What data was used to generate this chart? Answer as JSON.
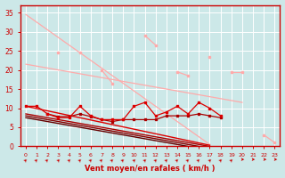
{
  "x": [
    0,
    1,
    2,
    3,
    4,
    5,
    6,
    7,
    8,
    9,
    10,
    11,
    12,
    13,
    14,
    15,
    16,
    17,
    18,
    19,
    20,
    21,
    22,
    23
  ],
  "pink_trend_top": [
    34.5,
    32.5,
    30.5,
    28.5,
    26.5,
    24.5,
    22.5,
    20.5,
    18.5,
    16.5,
    14.5,
    12.5,
    10.5,
    8.5,
    6.5,
    4.5,
    2.5,
    0.5,
    null,
    null,
    null,
    null,
    null,
    null
  ],
  "pink_noisy": [
    null,
    null,
    null,
    24.5,
    null,
    24.5,
    null,
    20,
    16.5,
    null,
    null,
    29,
    26.5,
    null,
    19.5,
    18.5,
    null,
    23.5,
    null,
    19.5,
    19.5,
    null,
    3,
    1
  ],
  "pink_trend_mid": [
    21.5,
    21,
    20.5,
    20,
    19.5,
    19,
    18.5,
    18,
    17.5,
    17,
    16.5,
    16,
    15.5,
    15,
    14.5,
    14,
    13.5,
    13,
    12.5,
    12,
    11.5,
    null,
    null,
    null
  ],
  "red_noisy": [
    10.5,
    10.5,
    8.5,
    7.5,
    7.5,
    10.5,
    8,
    7,
    7,
    7,
    10.5,
    11.5,
    8,
    9,
    10.5,
    8.5,
    11.5,
    10,
    8,
    null,
    null,
    null,
    null,
    null
  ],
  "red_trend": [
    10.5,
    9.9,
    9.3,
    8.7,
    8.1,
    7.5,
    6.9,
    6.3,
    5.7,
    5.1,
    4.5,
    3.9,
    3.3,
    2.7,
    2.1,
    1.5,
    0.9,
    0.3,
    null,
    null,
    null,
    null,
    null,
    null
  ],
  "darkred_noisy": [
    null,
    null,
    8.5,
    7.8,
    7.8,
    8.5,
    7.8,
    7,
    6.5,
    7,
    7,
    7,
    7,
    8,
    8,
    8,
    8.5,
    8,
    7.5,
    null,
    null,
    null,
    null,
    null
  ],
  "darkred_trend1": [
    8.5,
    8.0,
    7.5,
    7.0,
    6.5,
    6.0,
    5.5,
    5.0,
    4.5,
    4.0,
    3.5,
    3.0,
    2.5,
    2.0,
    1.5,
    1.0,
    0.5,
    0,
    null,
    null,
    null,
    null,
    null,
    null
  ],
  "darkred_trend2": [
    8.0,
    7.5,
    7.0,
    6.5,
    6.0,
    5.5,
    5.0,
    4.5,
    4.0,
    3.5,
    3.0,
    2.5,
    2.0,
    1.5,
    1.0,
    0.5,
    0,
    null,
    null,
    null,
    null,
    null,
    null,
    null
  ],
  "darkred_trend3": [
    7.5,
    7.0,
    6.5,
    6.0,
    5.5,
    5.0,
    4.5,
    4.0,
    3.5,
    3.0,
    2.5,
    2.0,
    1.5,
    1.0,
    0.5,
    0,
    null,
    null,
    null,
    null,
    null,
    null,
    null,
    null
  ],
  "background_color": "#cce8e8",
  "grid_color": "#ffffff",
  "spine_color": "#cc0000",
  "pink_color": "#ffaaaa",
  "red_color": "#dd0000",
  "darkred_color1": "#aa0000",
  "darkred_color2": "#880000",
  "darkred_color3": "#660000",
  "xlabel": "Vent moyen/en rafales ( km/h )",
  "ylim": [
    0,
    37
  ],
  "xlim": [
    -0.5,
    23.5
  ],
  "yticks": [
    0,
    5,
    10,
    15,
    20,
    25,
    30,
    35
  ],
  "xticks": [
    0,
    1,
    2,
    3,
    4,
    5,
    6,
    7,
    8,
    9,
    10,
    11,
    12,
    13,
    14,
    15,
    16,
    17,
    18,
    19,
    20,
    21,
    22,
    23
  ]
}
